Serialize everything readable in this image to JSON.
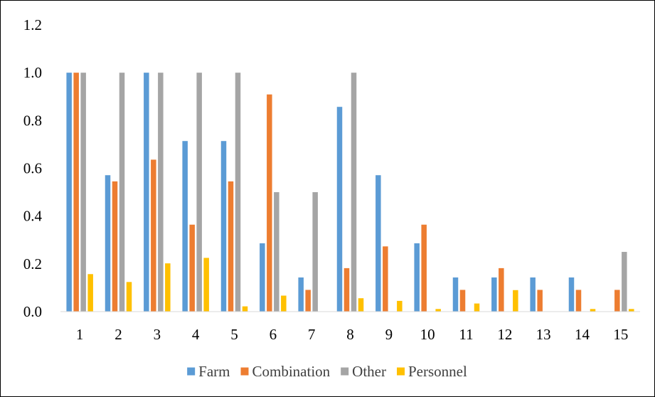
{
  "chart_data": {
    "type": "bar",
    "title": "",
    "xlabel": "",
    "ylabel": "",
    "ylim": [
      0,
      1.2
    ],
    "yticks": [
      "0.0",
      "0.2",
      "0.4",
      "0.6",
      "0.8",
      "1.0",
      "1.2"
    ],
    "grid": false,
    "legend_position": "bottom",
    "categories": [
      "1",
      "2",
      "3",
      "4",
      "5",
      "6",
      "7",
      "8",
      "9",
      "10",
      "11",
      "12",
      "13",
      "14",
      "15"
    ],
    "series": [
      {
        "name": "Farm",
        "color": "#5B9BD5",
        "values": [
          1.0,
          0.571,
          1.0,
          0.714,
          0.714,
          0.286,
          0.143,
          0.857,
          0.571,
          0.286,
          0.143,
          0.143,
          0.143,
          0.143,
          0.0
        ]
      },
      {
        "name": "Combination",
        "color": "#ED7D31",
        "values": [
          1.0,
          0.545,
          0.636,
          0.364,
          0.545,
          0.909,
          0.091,
          0.182,
          0.273,
          0.364,
          0.091,
          0.182,
          0.091,
          0.091,
          0.091
        ]
      },
      {
        "name": "Other",
        "color": "#A5A5A5",
        "values": [
          1.0,
          1.0,
          1.0,
          1.0,
          1.0,
          0.5,
          0.5,
          1.0,
          0.0,
          0.0,
          0.0,
          0.0,
          0.0,
          0.0,
          0.25
        ]
      },
      {
        "name": "Personnel",
        "color": "#FFC000",
        "values": [
          0.157,
          0.124,
          0.202,
          0.225,
          0.022,
          0.067,
          0.0,
          0.056,
          0.045,
          0.011,
          0.034,
          0.09,
          0.0,
          0.011,
          0.011
        ]
      }
    ]
  }
}
